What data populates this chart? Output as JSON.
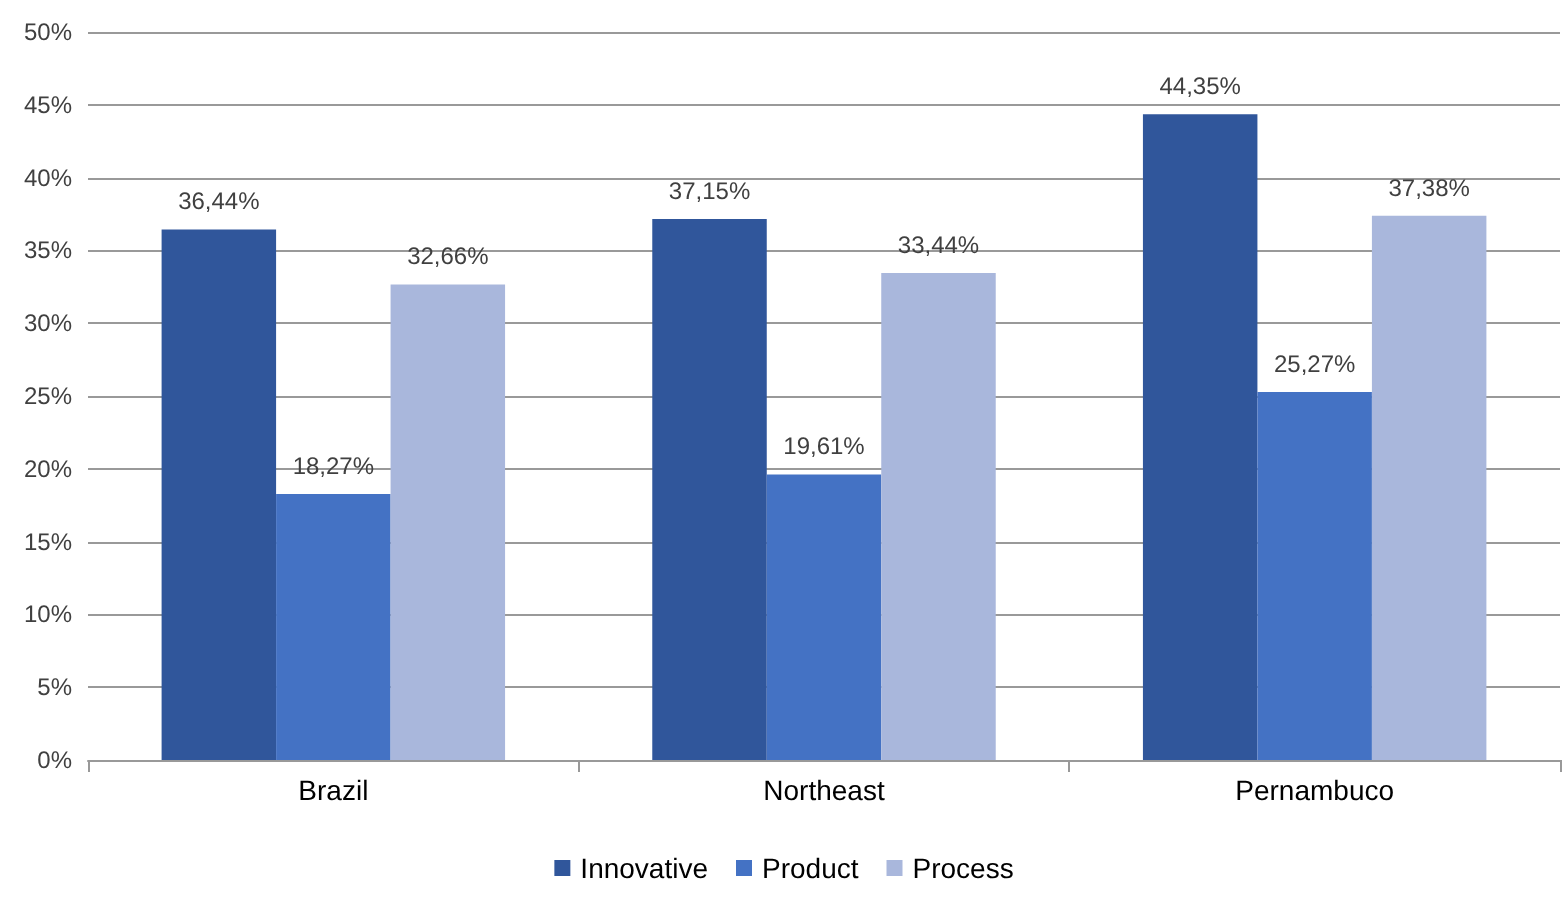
{
  "chart_data": {
    "type": "bar",
    "categories": [
      "Brazil",
      "Northeast",
      "Pernambuco"
    ],
    "series": [
      {
        "name": "Innovative",
        "color": "#30569b",
        "values": [
          36.44,
          37.15,
          44.35
        ],
        "value_labels": [
          "36,44%",
          "37,15%",
          "44,35%"
        ]
      },
      {
        "name": "Product",
        "color": "#4472c4",
        "values": [
          18.27,
          19.61,
          25.27
        ],
        "value_labels": [
          "18,27%",
          "19,61%",
          "25,27%"
        ]
      },
      {
        "name": "Process",
        "color": "#a9b7dc",
        "values": [
          32.66,
          33.44,
          37.38
        ],
        "value_labels": [
          "32,66%",
          "33,44%",
          "37,38%"
        ]
      }
    ],
    "ylim": [
      0,
      50
    ],
    "yticks": [
      {
        "value": 0,
        "label": "0%"
      },
      {
        "value": 5,
        "label": "5%"
      },
      {
        "value": 10,
        "label": "10%"
      },
      {
        "value": 15,
        "label": "15%"
      },
      {
        "value": 20,
        "label": "20%"
      },
      {
        "value": 25,
        "label": "25%"
      },
      {
        "value": 30,
        "label": "30%"
      },
      {
        "value": 35,
        "label": "35%"
      },
      {
        "value": 40,
        "label": "40%"
      },
      {
        "value": 45,
        "label": "45%"
      },
      {
        "value": 50,
        "label": "50%"
      }
    ],
    "grid": "y",
    "legend": "bottom"
  }
}
